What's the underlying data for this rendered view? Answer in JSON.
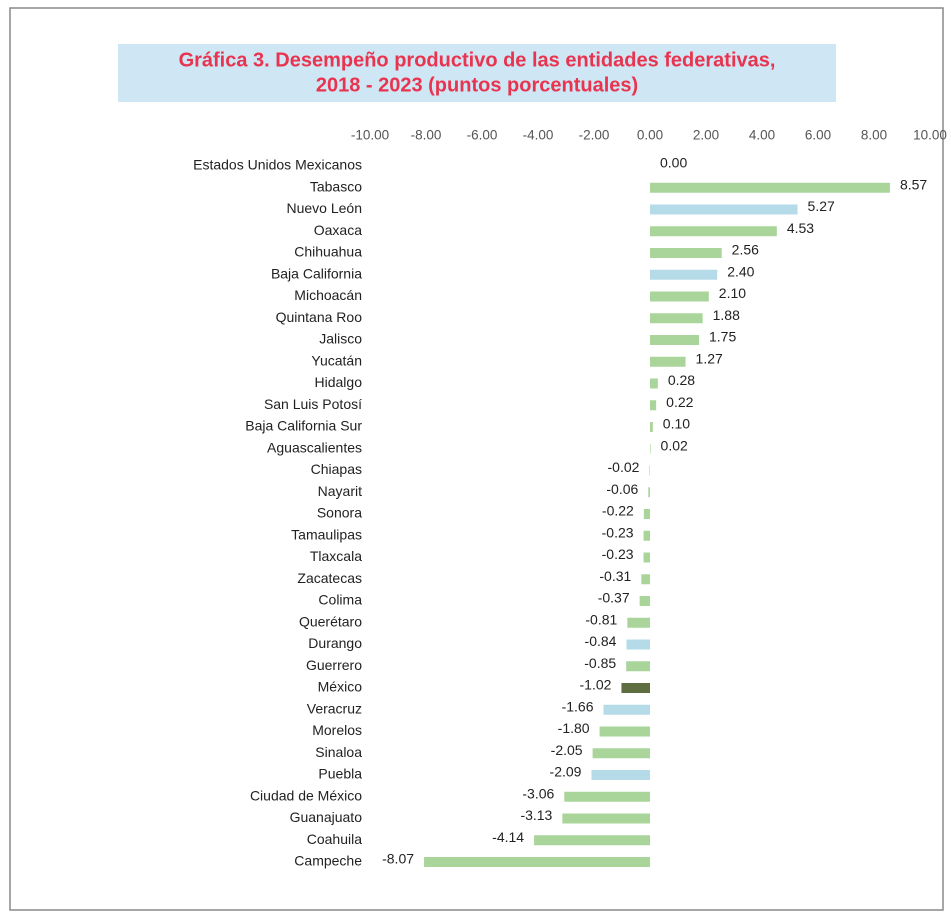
{
  "chart_data": {
    "type": "bar",
    "orientation": "horizontal",
    "title_lines": [
      "Gráfica 3. Desempeño productivo de las entidades federativas,",
      "2018 - 2023 (puntos porcentuales)"
    ],
    "categories": [
      "Estados Unidos Mexicanos",
      "Tabasco",
      "Nuevo León",
      "Oaxaca",
      "Chihuahua",
      "Baja California",
      "Michoacán",
      "Quintana Roo",
      "Jalisco",
      "Yucatán",
      "Hidalgo",
      "San Luis Potosí",
      "Baja California Sur",
      "Aguascalientes",
      "Chiapas",
      "Nayarit",
      "Sonora",
      "Tamaulipas",
      "Tlaxcala",
      "Zacatecas",
      "Colima",
      "Querétaro",
      "Durango",
      "Guerrero",
      "México",
      "Veracruz",
      "Morelos",
      "Sinaloa",
      "Puebla",
      "Ciudad de México",
      "Guanajuato",
      "Coahuila",
      "Campeche"
    ],
    "values": [
      0,
      8.57,
      5.27,
      4.53,
      2.56,
      2.4,
      2.1,
      1.88,
      1.75,
      1.27,
      0.28,
      0.22,
      0.1,
      0.02,
      -0.02,
      -0.06,
      -0.22,
      -0.23,
      -0.23,
      -0.31,
      -0.37,
      -0.81,
      -0.84,
      -0.85,
      -1.02,
      -1.66,
      -1.8,
      -2.05,
      -2.09,
      -3.06,
      -3.13,
      -4.14,
      -8.07
    ],
    "value_labels": [
      "0.00",
      "8.57",
      "5.27",
      "4.53",
      "2.56",
      "2.40",
      "2.10",
      "1.88",
      "1.75",
      "1.27",
      "0.28",
      "0.22",
      "0.10",
      "0.02",
      "-0.02",
      "-0.06",
      "-0.22",
      "-0.23",
      "-0.23",
      "-0.31",
      "-0.37",
      "-0.81",
      "-0.84",
      "-0.85",
      "-1.02",
      "-1.66",
      "-1.80",
      "-2.05",
      "-2.09",
      "-3.06",
      "-3.13",
      "-4.14",
      "-8.07"
    ],
    "colors": [
      "#a9d59a",
      "#a9d59a",
      "#b5dbe8",
      "#a9d59a",
      "#a9d59a",
      "#b5dbe8",
      "#a9d59a",
      "#a9d59a",
      "#a9d59a",
      "#a9d59a",
      "#a9d59a",
      "#a9d59a",
      "#a9d59a",
      "#a9d59a",
      "#a9d59a",
      "#a9d59a",
      "#a9d59a",
      "#a9d59a",
      "#a9d59a",
      "#a9d59a",
      "#a9d59a",
      "#a9d59a",
      "#b5dbe8",
      "#a9d59a",
      "#5e6e40",
      "#b5dbe8",
      "#a9d59a",
      "#a9d59a",
      "#b5dbe8",
      "#a9d59a",
      "#a9d59a",
      "#a9d59a",
      "#a9d59a"
    ],
    "xlim": [
      -10,
      10
    ],
    "xticks": [
      {
        "value": -10,
        "label": "-10.00"
      },
      {
        "value": -8,
        "label": "-8.00"
      },
      {
        "value": -6,
        "label": "-6.00"
      },
      {
        "value": -4,
        "label": "-4.00"
      },
      {
        "value": -2,
        "label": "-2.00"
      },
      {
        "value": 0,
        "label": "0.00"
      },
      {
        "value": 2,
        "label": "2.00"
      },
      {
        "value": 4,
        "label": "4.00"
      },
      {
        "value": 6,
        "label": "6.00"
      },
      {
        "value": 8,
        "label": "8.00"
      },
      {
        "value": 10,
        "label": "10.00"
      }
    ]
  }
}
